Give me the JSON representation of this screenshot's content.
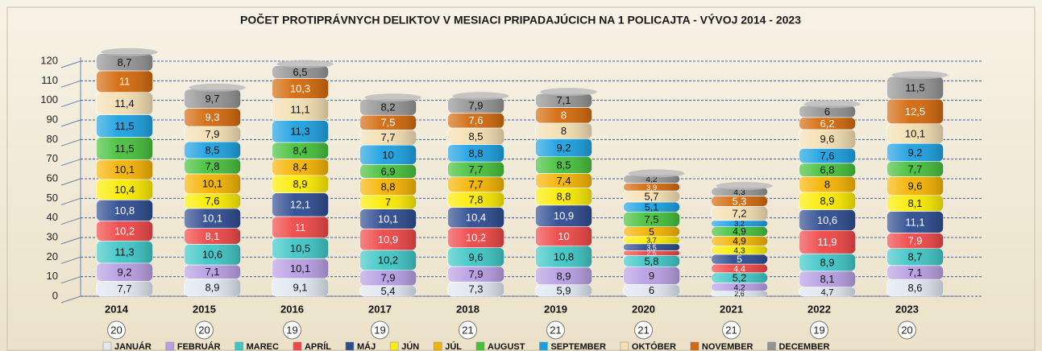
{
  "chart_data": {
    "type": "stacked_bar",
    "title": "POČET PROTIPRÁVNYCH DELIKTOV V MESIACI PRIPADAJÚCICH NA 1 POLICAJTA - VÝVOJ 2014 - 2023",
    "categories": [
      "2014",
      "2015",
      "2016",
      "2017",
      "2018",
      "2019",
      "2020",
      "2021",
      "2022",
      "2023"
    ],
    "annotations": [
      20,
      20,
      19,
      19,
      21,
      21,
      21,
      21,
      19,
      20
    ],
    "ylim": [
      0,
      120
    ],
    "yticks": [
      0,
      10,
      20,
      30,
      40,
      50,
      60,
      70,
      80,
      90,
      100,
      110,
      120
    ],
    "grid": true,
    "legend": "bottom",
    "series": [
      {
        "name": "JANUÁR",
        "color": "#dfe7f1",
        "values": [
          7.7,
          8.9,
          9.1,
          5.4,
          7.3,
          5.9,
          6,
          2.6,
          4.7,
          8.6
        ],
        "value_labels": [
          "7,7",
          "8,9",
          "9,1",
          "5,4",
          "7,3",
          "5,9",
          "6",
          "2,6",
          "4,7",
          "8,6"
        ]
      },
      {
        "name": "FEBRUÁR",
        "color": "#b89ee2",
        "values": [
          9.2,
          7.1,
          10.1,
          7.9,
          7.9,
          8.9,
          9,
          4.2,
          8.1,
          7.1
        ],
        "value_labels": [
          "9,2",
          "7,1",
          "10,1",
          "7,9",
          "7,9",
          "8,9",
          "9",
          "4,2",
          "8,1",
          "7,1"
        ]
      },
      {
        "name": "MAREC",
        "color": "#3ec6c6",
        "values": [
          11.3,
          10.6,
          10.5,
          10.2,
          9.6,
          10.8,
          5.8,
          5.2,
          8.9,
          8.7
        ],
        "value_labels": [
          "11,3",
          "10,6",
          "10,5",
          "10,2",
          "9,6",
          "10,8",
          "5,8",
          "5,2",
          "8,9",
          "8,7"
        ]
      },
      {
        "name": "APRÍL",
        "color": "#ef4646",
        "values": [
          10.2,
          8.1,
          11,
          10.9,
          10.2,
          10,
          2.5,
          4.4,
          11.9,
          7.9
        ],
        "value_labels": [
          "10,2",
          "8,1",
          "11",
          "10,9",
          "10,2",
          "10",
          "2,5",
          "4,4",
          "11,9",
          "7,9"
        ]
      },
      {
        "name": "MÁJ",
        "color": "#2d4b90",
        "values": [
          10.8,
          10.1,
          12.1,
          10.1,
          10.4,
          10.9,
          3.5,
          5,
          10.6,
          11.1
        ],
        "value_labels": [
          "10,8",
          "10,1",
          "12,1",
          "10,1",
          "10,4",
          "10,9",
          "3,5",
          "5",
          "10,6",
          "11,1"
        ]
      },
      {
        "name": "JÚN",
        "color": "#fcec00",
        "values": [
          10.4,
          7.6,
          8.9,
          7,
          7.8,
          8.8,
          3.7,
          4.3,
          8.9,
          8.1
        ],
        "value_labels": [
          "10,4",
          "7,6",
          "8,9",
          "7",
          "7,8",
          "8,8",
          "3,7",
          "4,3",
          "8,9",
          "8,1"
        ]
      },
      {
        "name": "JÚL",
        "color": "#f5b300",
        "values": [
          10.1,
          10.1,
          8.4,
          8.8,
          7.7,
          7.4,
          5,
          4.9,
          8,
          9.6
        ],
        "value_labels": [
          "10,1",
          "10,1",
          "8,4",
          "8,8",
          "7,7",
          "7,4",
          "5",
          "4,9",
          "8",
          "9,6"
        ]
      },
      {
        "name": "AUGUST",
        "color": "#45c03a",
        "values": [
          11.5,
          7.8,
          8.4,
          6.9,
          7.7,
          8.5,
          7.5,
          4.9,
          6.8,
          7.7
        ],
        "value_labels": [
          "11,5",
          "7,8",
          "8,4",
          "6,9",
          "7,7",
          "8,5",
          "7,5",
          "4,9",
          "6,8",
          "7,7"
        ]
      },
      {
        "name": "SEPTEMBER",
        "color": "#1ba0e0",
        "values": [
          11.5,
          8.5,
          11.3,
          10,
          8.8,
          9.2,
          5.1,
          3.2,
          7.6,
          9.2
        ],
        "value_labels": [
          "11,5",
          "8,5",
          "11,3",
          "10",
          "8,8",
          "9,2",
          "5,1",
          "3,2",
          "7,6",
          "9,2"
        ]
      },
      {
        "name": "OKTÓBER",
        "color": "#f4dfb2",
        "values": [
          11.4,
          7.9,
          11.1,
          7.7,
          8.5,
          8,
          5.7,
          7.2,
          9.6,
          10.1
        ],
        "value_labels": [
          "11,4",
          "7,9",
          "11,1",
          "7,7",
          "8,5",
          "8",
          "5,7",
          "7,2",
          "9,6",
          "10,1"
        ]
      },
      {
        "name": "NOVEMBER",
        "color": "#d2690c",
        "values": [
          11,
          9.3,
          10.3,
          7.5,
          7.6,
          8,
          3.9,
          5.3,
          6.2,
          12.5
        ],
        "value_labels": [
          "11",
          "9,3",
          "10,3",
          "7,5",
          "7,6",
          "8",
          "3,9",
          "5,3",
          "6,2",
          "12,5"
        ]
      },
      {
        "name": "DECEMBER",
        "color": "#939393",
        "values": [
          8.7,
          9.7,
          6.5,
          8.2,
          7.9,
          7.1,
          4.2,
          4.3,
          6,
          11.5
        ],
        "value_labels": [
          "8,7",
          "9,7",
          "6,5",
          "8,2",
          "7,9",
          "7,1",
          "4,2",
          "4,3",
          "6",
          "11,5"
        ]
      }
    ]
  }
}
